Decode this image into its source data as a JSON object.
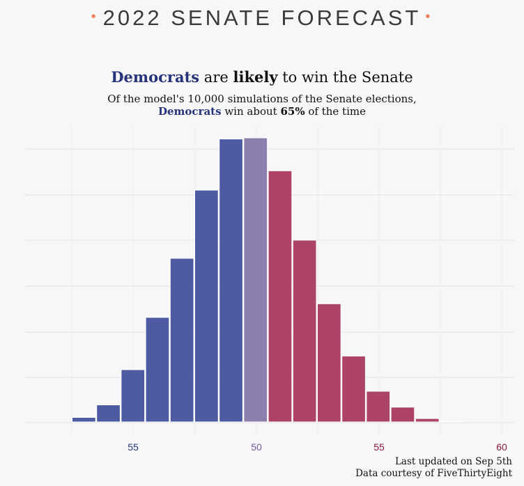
{
  "header": {
    "title": "2022 SENATE FORECAST",
    "dot": "•"
  },
  "headline": {
    "party": "Democrats",
    "mid": "are",
    "strong": "likely",
    "end": "to win the Senate"
  },
  "subtitle": {
    "line1": "Of the model's 10,000 simulations of the Senate elections,",
    "party": "Democrats",
    "mid": "win about",
    "pct": "65%",
    "end": "of the time"
  },
  "footer": {
    "updated": "Last updated on Sep 5th",
    "source": "Data courtesy of FiveThirtyEight"
  },
  "colors": {
    "dem": "#4e5ba3",
    "tie": "#8b7fae",
    "rep": "#ad4467",
    "dem_label": "#27347a",
    "tie_label": "#6f5a9a",
    "rep_label": "#8b1a3e",
    "bg": "#f7f7f7"
  },
  "chart_data": {
    "type": "bar",
    "xlabel": "",
    "ylabel": "",
    "x_ticks": [
      {
        "label": "55",
        "color": "dem"
      },
      {
        "label": "50",
        "color": "tie"
      },
      {
        "label": "55",
        "color": "rep"
      },
      {
        "label": "60",
        "color": "rep"
      }
    ],
    "grid": true,
    "bars": [
      {
        "dem_seats": 57,
        "share": 0.016,
        "party": "dem"
      },
      {
        "dem_seats": 56,
        "share": 0.06,
        "party": "dem"
      },
      {
        "dem_seats": 55,
        "share": 0.184,
        "party": "dem"
      },
      {
        "dem_seats": 54,
        "share": 0.368,
        "party": "dem"
      },
      {
        "dem_seats": 53,
        "share": 0.576,
        "party": "dem"
      },
      {
        "dem_seats": 52,
        "share": 0.816,
        "party": "dem"
      },
      {
        "dem_seats": 51,
        "share": 0.996,
        "party": "dem"
      },
      {
        "dem_seats": 50,
        "share": 1.0,
        "party": "tie"
      },
      {
        "dem_seats": 49,
        "share": 0.884,
        "party": "rep"
      },
      {
        "dem_seats": 48,
        "share": 0.64,
        "party": "rep"
      },
      {
        "dem_seats": 47,
        "share": 0.416,
        "party": "rep"
      },
      {
        "dem_seats": 46,
        "share": 0.232,
        "party": "rep"
      },
      {
        "dem_seats": 45,
        "share": 0.108,
        "party": "rep"
      },
      {
        "dem_seats": 44,
        "share": 0.052,
        "party": "rep"
      },
      {
        "dem_seats": 43,
        "share": 0.012,
        "party": "rep"
      },
      {
        "dem_seats": 42,
        "share": 0.002,
        "party": "rep"
      }
    ]
  }
}
